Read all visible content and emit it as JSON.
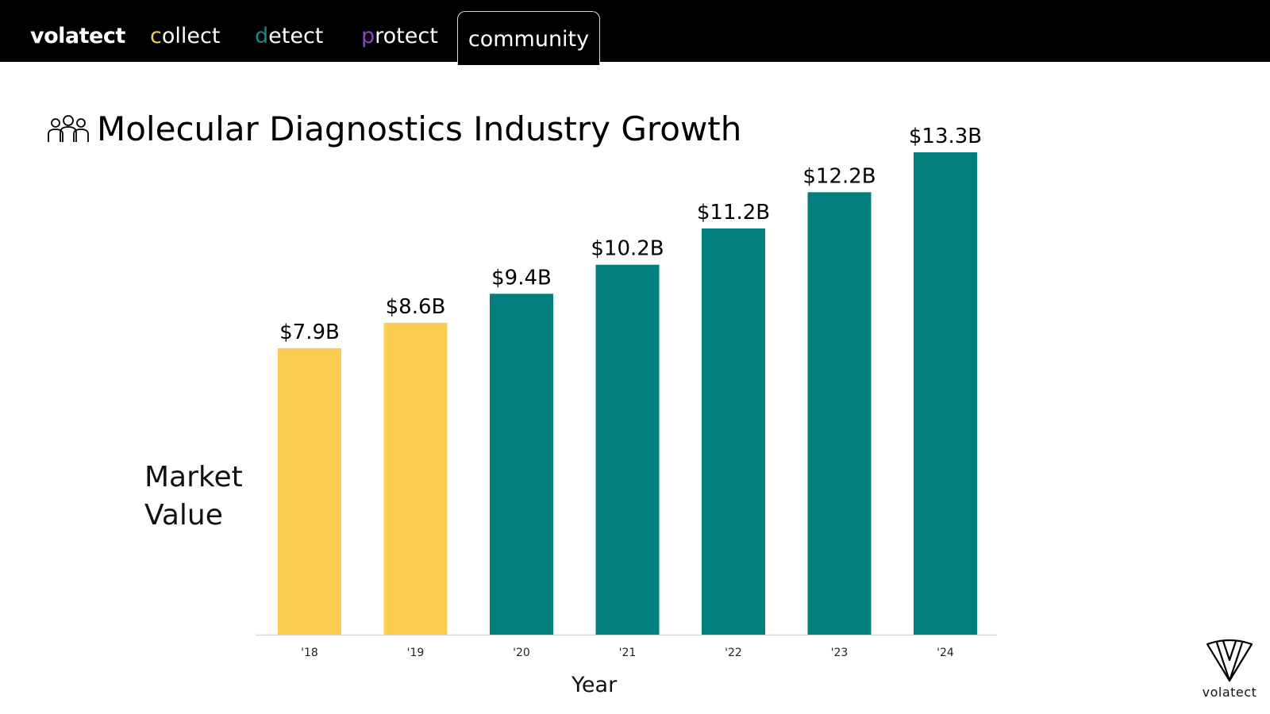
{
  "nav": {
    "brand": "volatect",
    "items": [
      {
        "first": "c",
        "rest": "ollect",
        "accent": "#f4cf4a"
      },
      {
        "first": "d",
        "rest": "etect",
        "accent": "#168b86"
      },
      {
        "first": "p",
        "rest": "rotect",
        "accent": "#8d43c8"
      },
      {
        "label": "community"
      }
    ]
  },
  "heading": {
    "icon": "community-people-icon",
    "title": "Molecular Diagnostics Industry Growth"
  },
  "chart_data": {
    "type": "bar",
    "title": "Molecular Diagnostics Industry Growth",
    "xlabel": "Year",
    "ylabel": "Market Value",
    "categories": [
      "'18",
      "'19",
      "'20",
      "'21",
      "'22",
      "'23",
      "'24"
    ],
    "values": [
      7.9,
      8.6,
      9.4,
      10.2,
      11.2,
      12.2,
      13.3
    ],
    "data_labels": [
      "$7.9B",
      "$8.6B",
      "$9.4B",
      "$10.2B",
      "$11.2B",
      "$12.2B",
      "$13.3B"
    ],
    "unit": "$B",
    "ylim": [
      0,
      13.3
    ],
    "bar_colors": [
      "#fccd53",
      "#fccd53",
      "#007f7e",
      "#007f7e",
      "#007f7e",
      "#007f7e",
      "#007f7e"
    ],
    "grid": false,
    "legend": "none"
  },
  "footer": {
    "logo_text": "volatect"
  }
}
